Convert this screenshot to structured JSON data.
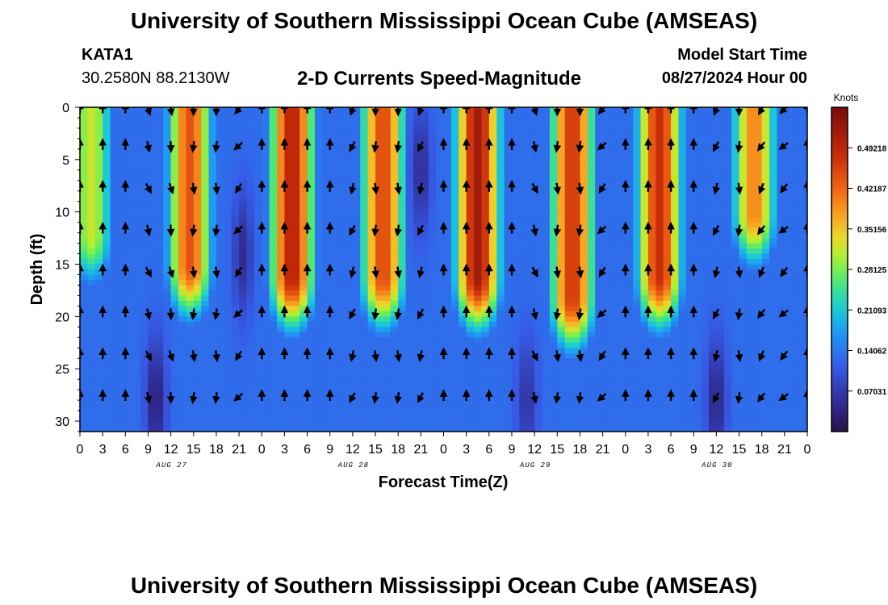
{
  "header": {
    "title": "University of Southern Mississippi Ocean Cube (AMSEAS)",
    "station": "KATA1",
    "coordinates": "30.2580N  88.2130W",
    "subtitle": "2-D Currents Speed-Magnitude",
    "model_start_label": "Model Start Time",
    "model_start_value": "08/27/2024 Hour 00"
  },
  "footer": {
    "title": "University of Southern Mississippi Ocean Cube (AMSEAS)"
  },
  "chart_data": {
    "type": "heatmap",
    "title": "2-D Currents Speed-Magnitude",
    "xlabel": "Forecast Time(Z)",
    "ylabel": "Depth (ft)",
    "colorbar_label": "Knots",
    "x_range_hours": [
      0,
      96
    ],
    "x_tick_hours": [
      0,
      3,
      6,
      9,
      12,
      15,
      18,
      21,
      24,
      27,
      30,
      33,
      36,
      39,
      42,
      45,
      48,
      51,
      54,
      57,
      60,
      63,
      66,
      69,
      72,
      75,
      78,
      81,
      84,
      87,
      90,
      93,
      96
    ],
    "x_tick_labels": [
      "0",
      "3",
      "6",
      "9",
      "12",
      "15",
      "18",
      "21",
      "0",
      "3",
      "6",
      "9",
      "12",
      "15",
      "18",
      "21",
      "0",
      "3",
      "6",
      "9",
      "12",
      "15",
      "18",
      "21",
      "0",
      "3",
      "6",
      "9",
      "12",
      "15",
      "18",
      "21",
      "0"
    ],
    "date_labels": [
      {
        "label": "AUG 27",
        "hour": 12
      },
      {
        "label": "AUG 28",
        "hour": 36
      },
      {
        "label": "AUG 29",
        "hour": 60
      },
      {
        "label": "AUG 30",
        "hour": 84
      }
    ],
    "y_range_ft": [
      0,
      31
    ],
    "y_ticks": [
      0,
      5,
      10,
      15,
      20,
      25,
      30
    ],
    "colorbar_range": [
      0,
      0.5625
    ],
    "colorbar_ticks": [
      0.07031,
      0.14062,
      0.21093,
      0.28125,
      0.35156,
      0.42187,
      0.49218
    ],
    "colorbar_tick_labels": [
      "0.07031",
      "0.14062",
      "0.21093",
      "0.28125",
      "0.35156",
      "0.42187",
      "0.49218"
    ],
    "speed_peaks": [
      {
        "hour": 1.5,
        "speed": 0.32,
        "depth_penetration_ft": 12
      },
      {
        "hour": 14.5,
        "speed": 0.44,
        "depth_penetration_ft": 15
      },
      {
        "hour": 28,
        "speed": 0.5,
        "depth_penetration_ft": 16
      },
      {
        "hour": 40,
        "speed": 0.45,
        "depth_penetration_ft": 16
      },
      {
        "hour": 52.5,
        "speed": 0.52,
        "depth_penetration_ft": 16
      },
      {
        "hour": 65,
        "speed": 0.47,
        "depth_penetration_ft": 18
      },
      {
        "hour": 76.5,
        "speed": 0.48,
        "depth_penetration_ft": 16
      },
      {
        "hour": 89,
        "speed": 0.4,
        "depth_penetration_ft": 10
      }
    ],
    "speed_minima": [
      {
        "hour": 10,
        "depth_ft": 28,
        "speed": 0.03
      },
      {
        "hour": 21.5,
        "depth_ft": 14,
        "speed": 0.05
      },
      {
        "hour": 45,
        "depth_ft": 6,
        "speed": 0.05
      },
      {
        "hour": 59,
        "depth_ft": 28,
        "speed": 0.06
      },
      {
        "hour": 84,
        "depth_ft": 28,
        "speed": 0.04
      }
    ],
    "vector_rows_ft": [
      0,
      3.5,
      7.5,
      11.5,
      15.5,
      19.5,
      23.5,
      27.5
    ],
    "vector_hours": [
      0,
      3,
      6,
      9,
      12,
      15,
      18,
      21,
      24,
      27,
      30,
      33,
      36,
      39,
      42,
      45,
      48,
      51,
      54,
      57,
      60,
      63,
      66,
      69,
      72,
      75,
      78,
      81,
      84,
      87,
      90,
      93,
      96
    ],
    "vector_directions_deg": [
      0,
      0,
      0,
      160,
      170,
      180,
      180,
      220,
      0,
      0,
      0,
      0,
      200,
      180,
      180,
      200,
      0,
      0,
      0,
      0,
      160,
      180,
      180,
      220,
      0,
      0,
      0,
      0,
      200,
      180,
      210,
      225,
      0
    ]
  }
}
